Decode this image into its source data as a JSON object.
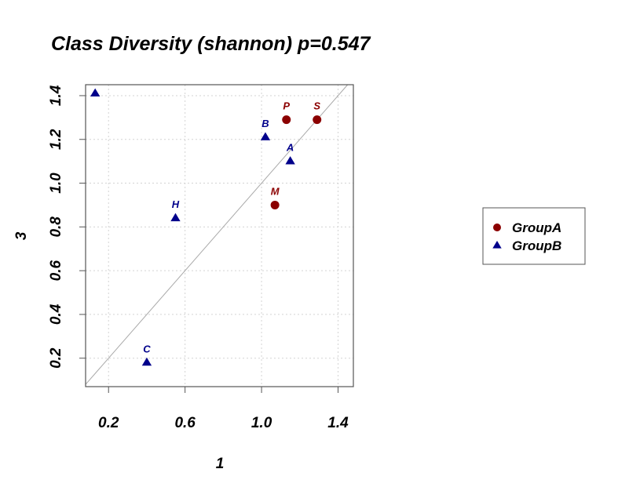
{
  "chart_data": {
    "type": "scatter",
    "title": "Class Diversity (shannon) p=0.547",
    "xlabel": "1",
    "ylabel": "3",
    "xlim": [
      0.08,
      1.48
    ],
    "ylim": [
      0.07,
      1.45
    ],
    "xticks": [
      0.2,
      0.6,
      1.0,
      1.4
    ],
    "xtick_labels": [
      "0.2",
      "0.6",
      "1.0",
      "1.4"
    ],
    "yticks": [
      0.2,
      0.4,
      0.6,
      0.8,
      1.0,
      1.2,
      1.4
    ],
    "ytick_labels": [
      "0.2",
      "0.4",
      "0.6",
      "0.8",
      "1.0",
      "1.2",
      "1.4"
    ],
    "grid": true,
    "reference_line": "y = x",
    "legend_position": "right",
    "series": [
      {
        "name": "GroupA",
        "marker": "circle",
        "color": "#8b0000",
        "points": [
          {
            "label": "P",
            "x": 1.13,
            "y": 1.29
          },
          {
            "label": "S",
            "x": 1.29,
            "y": 1.29
          },
          {
            "label": "M",
            "x": 1.07,
            "y": 0.9
          }
        ]
      },
      {
        "name": "GroupB",
        "marker": "triangle",
        "color": "#00008b",
        "points": [
          {
            "label": "",
            "x": 0.13,
            "y": 1.41
          },
          {
            "label": "B",
            "x": 1.02,
            "y": 1.21
          },
          {
            "label": "A",
            "x": 1.15,
            "y": 1.1
          },
          {
            "label": "H",
            "x": 0.55,
            "y": 0.84
          },
          {
            "label": "C",
            "x": 0.4,
            "y": 0.18
          }
        ]
      }
    ]
  }
}
